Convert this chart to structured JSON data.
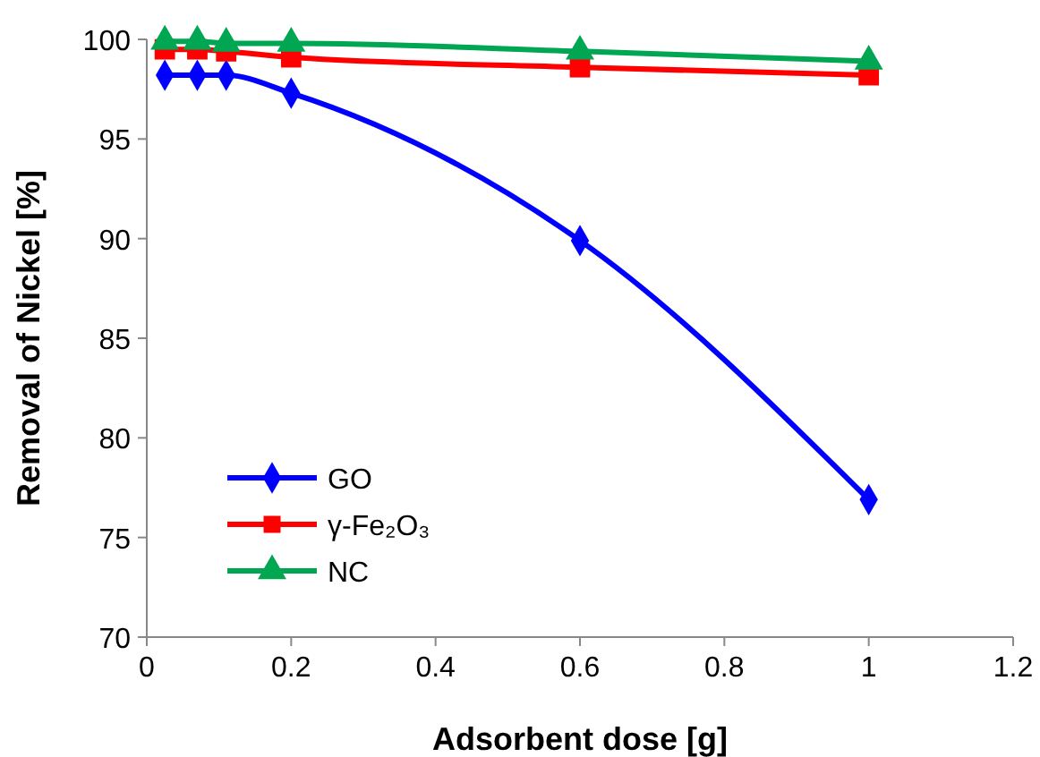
{
  "chart_data": {
    "type": "line",
    "xlabel": "Adsorbent dose [g]",
    "ylabel": "Removal of Nickel [%]",
    "x": [
      0.025,
      0.07,
      0.11,
      0.2,
      0.6,
      1
    ],
    "series": [
      {
        "name": "GO",
        "color": "#0000ff",
        "marker": "diamond",
        "values": [
          98.2,
          98.2,
          98.2,
          97.3,
          89.9,
          76.9
        ]
      },
      {
        "name": "γ-Fe₂O₃",
        "color": "#ff0000",
        "marker": "square",
        "values": [
          99.5,
          99.5,
          99.4,
          99.1,
          98.6,
          98.2
        ]
      },
      {
        "name": "NC",
        "color": "#00a651",
        "marker": "triangle",
        "values": [
          99.9,
          99.9,
          99.8,
          99.8,
          99.4,
          98.9
        ]
      }
    ],
    "xlim": [
      0,
      1.2
    ],
    "xticks": [
      0,
      0.2,
      0.4,
      0.6,
      0.8,
      1,
      1.2
    ],
    "ylim": [
      70,
      100
    ],
    "yticks": [
      70,
      75,
      80,
      85,
      90,
      95,
      100
    ],
    "grid": false,
    "legend": "bottom left"
  }
}
